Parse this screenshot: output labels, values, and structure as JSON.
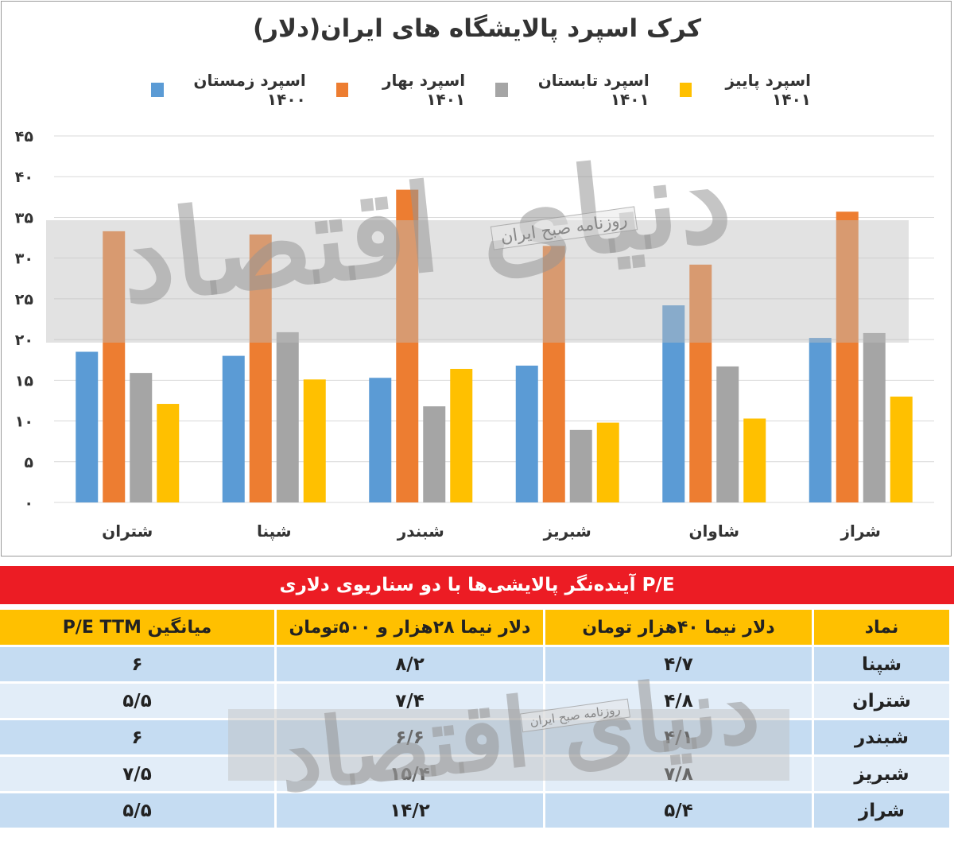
{
  "chart_data": {
    "type": "bar",
    "title": "کرک اسپرد پالایشگاه های ایران(دلار)",
    "legend_position": "top",
    "categories": [
      "شتران",
      "شپنا",
      "شبندر",
      "شبریز",
      "شاوان",
      "شراز"
    ],
    "series": [
      {
        "name": "اسپرد زمستان ۱۴۰۰",
        "color": "#5b9bd5",
        "values": [
          18.5,
          18,
          15.3,
          16.8,
          24.2,
          20.2
        ]
      },
      {
        "name": "اسپرد بهار ۱۴۰۱",
        "color": "#ed7d31",
        "values": [
          33.3,
          32.9,
          38.4,
          31.5,
          29.2,
          35.7
        ]
      },
      {
        "name": "اسپرد تابستان ۱۴۰۱",
        "color": "#a5a5a5",
        "values": [
          15.9,
          20.9,
          11.8,
          8.9,
          16.7,
          20.8
        ]
      },
      {
        "name": "اسپرد پاییز ۱۴۰۱",
        "color": "#ffc000",
        "values": [
          12.1,
          15.1,
          16.4,
          9.8,
          10.3,
          13
        ]
      }
    ],
    "ylim": [
      0,
      45
    ],
    "yticks": [
      "0",
      "5",
      "10",
      "15",
      "20",
      "25",
      "30",
      "35",
      "40",
      "45"
    ],
    "ytick_labels": [
      "۰",
      "۵",
      "۱۰",
      "۱۵",
      "۲۰",
      "۲۵",
      "۳۰",
      "۳۵",
      "۴۰",
      "۴۵"
    ],
    "grid": true
  },
  "watermark": {
    "main": "دنیای اقتصاد",
    "tag": "روزنامه صبح ایران"
  },
  "table": {
    "title": "P/E آینده‌نگر پالایشی‌ها با دو سناریوی دلاری",
    "header_color": "#ffc000",
    "title_color": "#ec1c24",
    "headers": [
      "نماد",
      "دلار نیما ۴۰هزار تومان",
      "دلار نیما ۲۸هزار و ۵۰۰تومان",
      "میانگین P/E TTM"
    ],
    "rows": [
      [
        "شپنا",
        "۴/۷",
        "۸/۲",
        "۶"
      ],
      [
        "شتران",
        "۴/۸",
        "۷/۴",
        "۵/۵"
      ],
      [
        "شبندر",
        "۴/۱",
        "۶/۶",
        "۶"
      ],
      [
        "شبریز",
        "۷/۸",
        "۱۵/۴",
        "۷/۵"
      ],
      [
        "شراز",
        "۵/۴",
        "۱۴/۲",
        "۵/۵"
      ]
    ]
  }
}
